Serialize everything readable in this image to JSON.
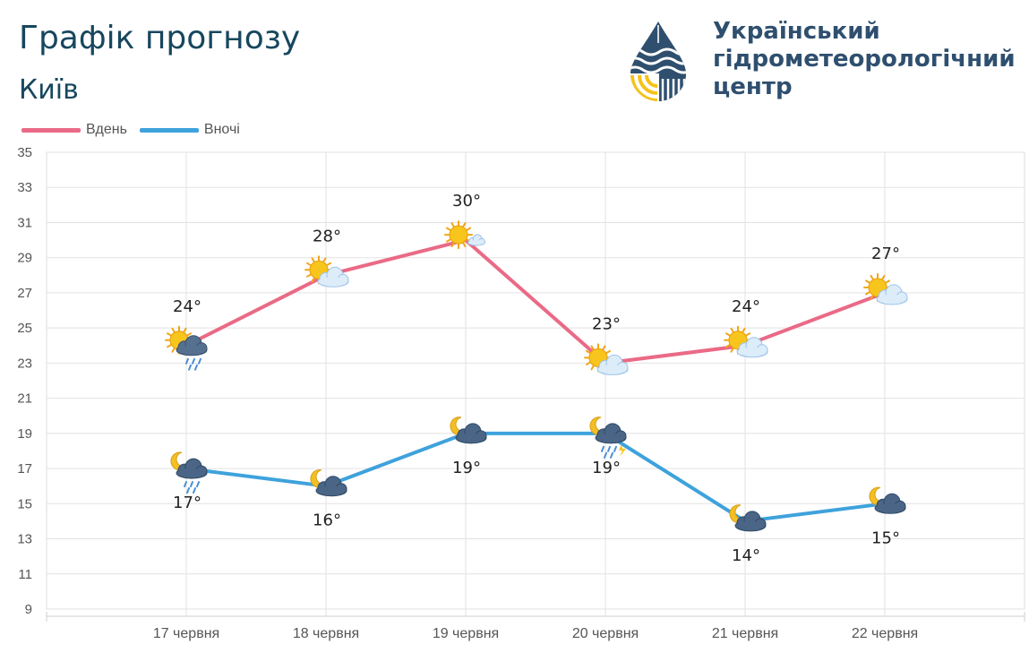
{
  "header": {
    "title": "Графік прогнозу",
    "city": "Київ"
  },
  "organization": {
    "name_lines": [
      "Український",
      "гідрометеорологічний",
      "центр"
    ],
    "logo_icon": "water-drop-logo-icon",
    "colors": {
      "primary": "#2f4f6f",
      "accent": "#f6c21a"
    }
  },
  "chart_data": {
    "type": "line",
    "categories": [
      "17 червня",
      "18 червня",
      "19 червня",
      "20 червня",
      "21 червня",
      "22 червня"
    ],
    "series": [
      {
        "name": "Вдень",
        "color": "#ea6a86",
        "values": [
          24,
          28,
          30,
          23,
          24,
          27
        ],
        "labels": [
          "24°",
          "28°",
          "30°",
          "23°",
          "24°",
          "27°"
        ],
        "icons": [
          "sun-cloud-rain-icon",
          "sun-cloud-icon",
          "sun-small-cloud-icon",
          "sun-cloud-icon",
          "sun-cloud-icon",
          "sun-cloud-icon"
        ]
      },
      {
        "name": "Вночі",
        "color": "#3ea2dc",
        "values": [
          17,
          16,
          19,
          19,
          14,
          15
        ],
        "labels": [
          "17°",
          "16°",
          "19°",
          "19°",
          "14°",
          "15°"
        ],
        "icons": [
          "moon-cloud-rain-icon",
          "moon-cloud-icon",
          "moon-cloud-icon",
          "moon-cloud-thunder-rain-icon",
          "moon-cloud-icon",
          "moon-cloud-icon"
        ]
      }
    ],
    "ylim": [
      9,
      35
    ],
    "yticks": [
      9,
      11,
      13,
      15,
      17,
      19,
      21,
      23,
      25,
      27,
      29,
      31,
      33,
      35
    ],
    "grid": true,
    "legend_position": "top-left"
  }
}
